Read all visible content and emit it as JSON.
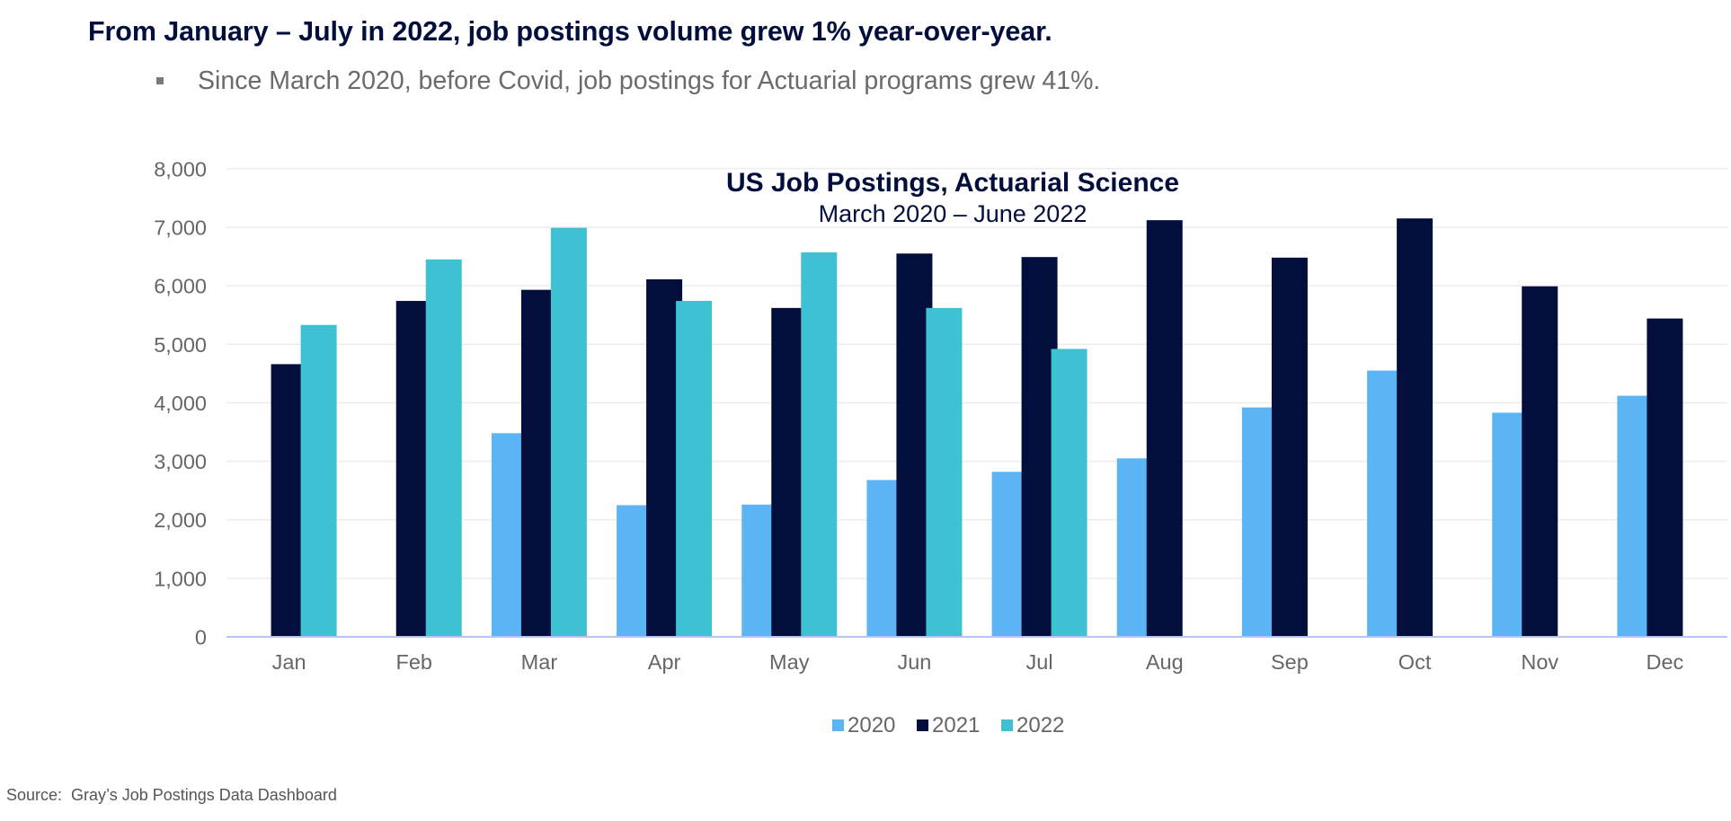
{
  "headline": "From January – July in 2022, job postings volume grew 1% year-over-year.",
  "bullet": {
    "icon": "square-bullet-icon",
    "text": "Since March 2020, before Covid, job postings for Actuarial programs grew 41%."
  },
  "source": "Source:  Gray’s Job Postings Data Dashboard",
  "chart_data": {
    "type": "bar",
    "title": "US Job Postings, Actuarial Science",
    "subtitle": "March 2020 – June 2022",
    "xlabel": "",
    "ylabel": "",
    "ylim": [
      0,
      8000
    ],
    "y_ticks": [
      0,
      1000,
      2000,
      3000,
      4000,
      5000,
      6000,
      7000,
      8000
    ],
    "y_tick_labels": [
      "0",
      "1,000",
      "2,000",
      "3,000",
      "4,000",
      "5,000",
      "6,000",
      "7,000",
      "8,000"
    ],
    "grid": true,
    "legend_position": "bottom",
    "categories": [
      "Jan",
      "Feb",
      "Mar",
      "Apr",
      "May",
      "Jun",
      "Jul",
      "Aug",
      "Sep",
      "Oct",
      "Nov",
      "Dec"
    ],
    "series": [
      {
        "name": "2020",
        "color": "#5bb5f5",
        "values": [
          null,
          null,
          3480,
          2250,
          2260,
          2680,
          2820,
          3050,
          3920,
          4550,
          3830,
          4120
        ]
      },
      {
        "name": "2021",
        "color": "#020e3c",
        "values": [
          4660,
          5740,
          5930,
          6110,
          5620,
          6550,
          6490,
          7120,
          6480,
          7150,
          5990,
          5440
        ]
      },
      {
        "name": "2022",
        "color": "#3ec1d2",
        "values": [
          5330,
          6450,
          6990,
          5740,
          6570,
          5620,
          4920,
          null,
          null,
          null,
          null,
          null
        ]
      }
    ]
  }
}
